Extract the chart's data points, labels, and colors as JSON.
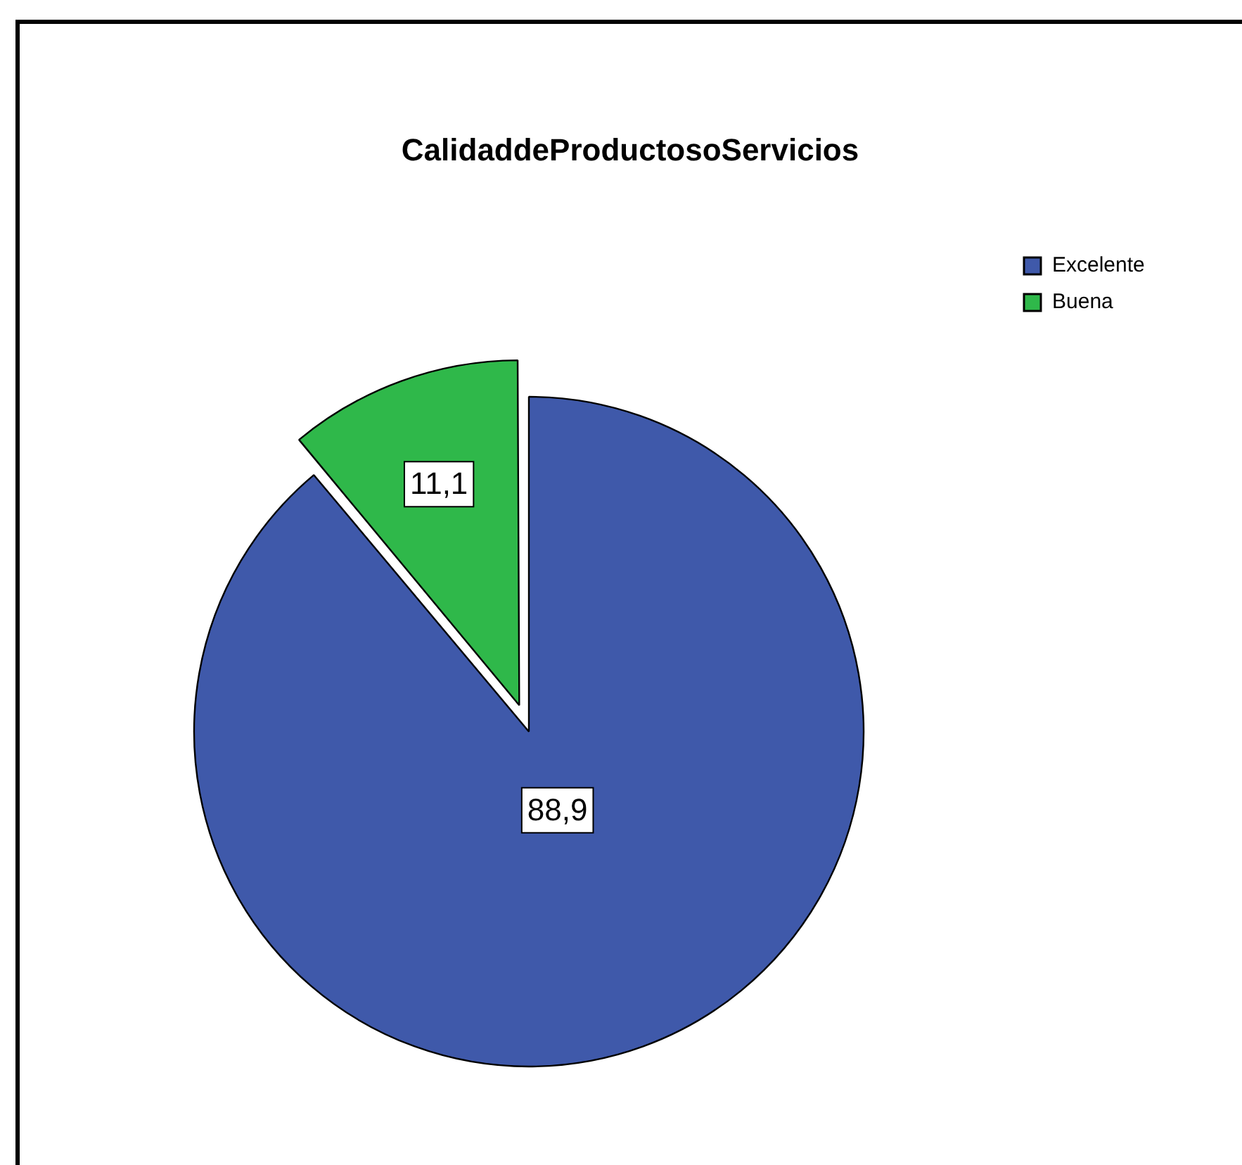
{
  "chart_data": {
    "type": "pie",
    "title": "CalidaddeProductosoServicios",
    "categories": [
      "Excelente",
      "Buena"
    ],
    "values": [
      88.9,
      11.1
    ],
    "colors": [
      "#3f59aa",
      "#2fb84a"
    ],
    "value_labels": [
      "88,9",
      "11,1"
    ],
    "legend": "top right"
  }
}
